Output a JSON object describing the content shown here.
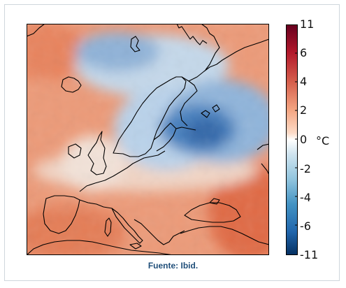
{
  "colorbar": {
    "unit": "°C",
    "ticks": [
      "11",
      "6",
      "4",
      "2",
      "0",
      "-2",
      "-4",
      "-6",
      "-11"
    ],
    "stops": [
      "#b2182b",
      "#d6604d",
      "#f4a582",
      "#fddbc7",
      "#ffffff",
      "#d1e5f0",
      "#92c5de",
      "#4393c3",
      "#2166ac",
      "#053061"
    ]
  },
  "caption": "Fuente: Ibid.",
  "colors": {
    "warm": "#e8906c",
    "warm_strong": "#d9633f",
    "neutral": "#f6ece6",
    "cool": "#c9ddee",
    "cold": "#3f78b8",
    "coastline": "#000000"
  }
}
